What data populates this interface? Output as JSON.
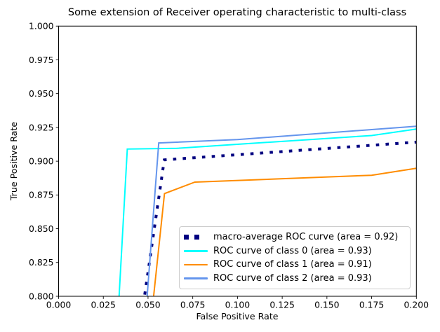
{
  "chart_data": {
    "type": "line",
    "title": "Some extension of Receiver operating characteristic to multi-class",
    "xlabel": "False Positive Rate",
    "ylabel": "True Positive Rate",
    "xlim": [
      0.0,
      0.2
    ],
    "ylim": [
      0.8,
      1.0
    ],
    "xticks": [
      "0.000",
      "0.025",
      "0.050",
      "0.075",
      "0.100",
      "0.125",
      "0.150",
      "0.175",
      "0.200"
    ],
    "yticks": [
      "0.800",
      "0.825",
      "0.850",
      "0.875",
      "0.900",
      "0.925",
      "0.950",
      "0.975",
      "1.000"
    ],
    "grid": false,
    "legend_position": "lower right",
    "frame_color": "#000000",
    "legend_border_color": "#cccccc",
    "series": [
      {
        "name": "macro-average",
        "label": "macro-average ROC curve (area = 0.92)",
        "area": 0.92,
        "color": "#000080",
        "style": "dotted",
        "linewidth": 4,
        "points": [
          [
            0.0458,
            0.78
          ],
          [
            0.048,
            0.8
          ],
          [
            0.0591,
            0.901
          ],
          [
            0.1,
            0.9048
          ],
          [
            0.2,
            0.9141
          ]
        ]
      },
      {
        "name": "class-0",
        "label": "ROC curve of class 0 (area = 0.93)",
        "area": 0.93,
        "color": "#00FFFF",
        "style": "solid",
        "linewidth": 2,
        "points": [
          [
            0.033,
            0.78
          ],
          [
            0.0338,
            0.8
          ],
          [
            0.0384,
            0.909
          ],
          [
            0.066,
            0.9095
          ],
          [
            0.1,
            0.9125
          ],
          [
            0.175,
            0.919
          ],
          [
            0.2,
            0.9238
          ]
        ]
      },
      {
        "name": "class-1",
        "label": "ROC curve of class 1 (area = 0.91)",
        "area": 0.91,
        "color": "#FF8C00",
        "style": "solid",
        "linewidth": 2,
        "points": [
          [
            0.0515,
            0.78
          ],
          [
            0.0531,
            0.8
          ],
          [
            0.0592,
            0.876
          ],
          [
            0.0762,
            0.8845
          ],
          [
            0.175,
            0.8896
          ],
          [
            0.2,
            0.8948
          ]
        ]
      },
      {
        "name": "class-2",
        "label": "ROC curve of class 2 (area = 0.93)",
        "area": 0.93,
        "color": "#6495ED",
        "style": "solid",
        "linewidth": 2,
        "points": [
          [
            0.0484,
            0.78
          ],
          [
            0.0495,
            0.8
          ],
          [
            0.056,
            0.9135
          ],
          [
            0.1,
            0.916
          ],
          [
            0.2,
            0.9259
          ]
        ]
      }
    ]
  }
}
